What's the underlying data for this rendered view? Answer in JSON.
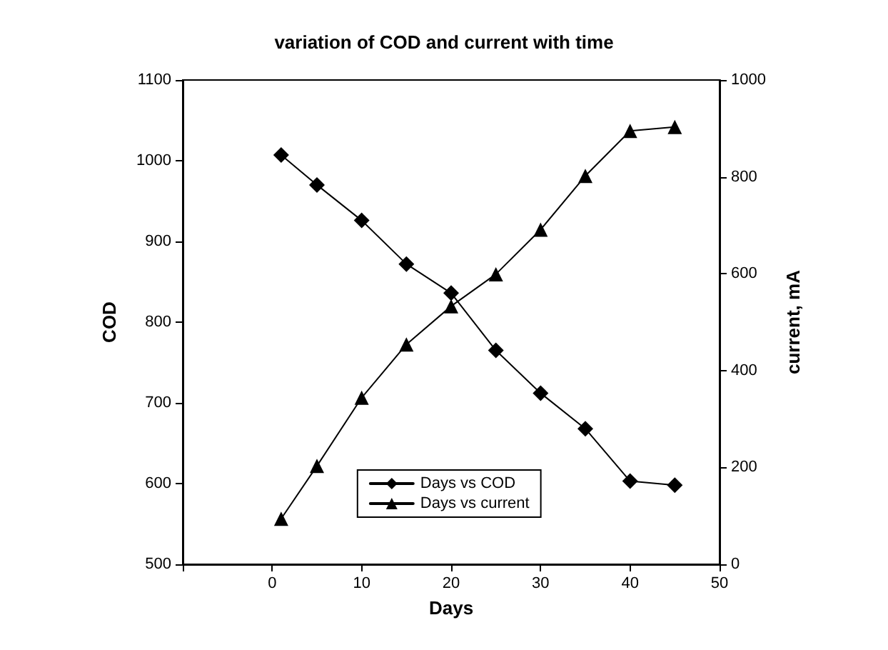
{
  "chart_data": {
    "type": "line",
    "title": "variation of COD and current with time",
    "xlabel": "Days",
    "ylabel": "COD",
    "y2label": "current, mA",
    "x": [
      1,
      5,
      10,
      15,
      20,
      25,
      30,
      35,
      40,
      45
    ],
    "series": [
      {
        "name": "Days vs COD",
        "color": "#000000",
        "marker": "diamond",
        "values": [
          1007,
          970,
          926,
          872,
          836,
          765,
          712,
          668,
          603,
          598
        ]
      },
      {
        "name": "Days vs current",
        "color": "#000000",
        "marker": "triangle",
        "axis": "y2",
        "values": [
          94,
          203,
          344,
          454,
          533,
          599,
          691,
          802,
          895,
          903
        ]
      }
    ],
    "xlim": [
      -10,
      50
    ],
    "xticks": [
      {
        "value": -10,
        "label": null
      },
      0,
      10,
      20,
      30,
      40,
      50
    ],
    "ylim": [
      500,
      1100
    ],
    "yticks": [
      500,
      600,
      700,
      800,
      900,
      1000,
      1100
    ],
    "y2lim": [
      0,
      1000
    ],
    "y2ticks": [
      0,
      200,
      400,
      600,
      800,
      1000
    ],
    "grid": false,
    "legend": "bottom",
    "line_style": "solid"
  }
}
